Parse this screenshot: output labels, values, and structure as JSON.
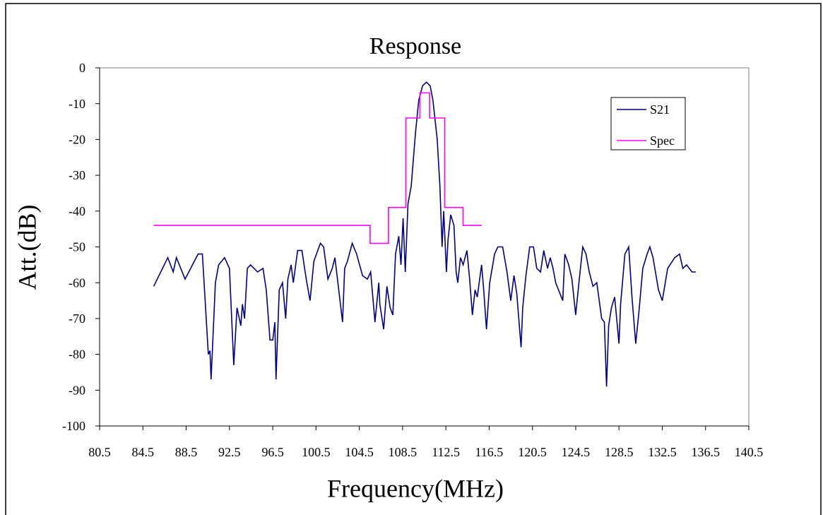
{
  "chart_data": {
    "type": "line",
    "title": "Response",
    "x_label": "Frequency(MHz)",
    "y_label": "Att.(dB)",
    "xlim": [
      80.5,
      140.5
    ],
    "xticks": [
      80.5,
      84.5,
      88.5,
      92.5,
      96.5,
      100.5,
      104.5,
      108.5,
      112.5,
      116.5,
      120.5,
      124.5,
      128.5,
      132.5,
      136.5,
      140.5
    ],
    "ylim": [
      -100,
      0
    ],
    "yticks": [
      0,
      -10,
      -20,
      -30,
      -40,
      -50,
      -60,
      -70,
      -80,
      -90,
      -100
    ],
    "legend": "upper right",
    "series": [
      {
        "name": "S21",
        "color": "#000080",
        "x": [
          85.5,
          86.8,
          87.3,
          87.6,
          88.4,
          89.6,
          90.0,
          90.55,
          90.7,
          90.8,
          91.2,
          91.5,
          92.05,
          92.5,
          92.9,
          93.2,
          93.55,
          93.7,
          93.9,
          94.15,
          94.45,
          95.1,
          95.6,
          95.9,
          96.25,
          96.5,
          96.7,
          96.8,
          97.1,
          97.4,
          97.7,
          97.9,
          98.2,
          98.4,
          98.8,
          99.2,
          99.6,
          99.95,
          100.3,
          100.9,
          101.2,
          101.6,
          102.0,
          102.25,
          102.95,
          103.15,
          103.4,
          103.85,
          104.25,
          104.8,
          105.25,
          105.55,
          105.95,
          106.3,
          106.4,
          106.75,
          107.05,
          107.35,
          107.6,
          107.85,
          108.15,
          108.35,
          108.55,
          108.75,
          109.0,
          109.3,
          109.7,
          110.0,
          110.35,
          110.7,
          111.05,
          111.3,
          111.7,
          111.95,
          112.15,
          112.3,
          112.55,
          112.7,
          112.95,
          113.25,
          113.45,
          113.6,
          113.85,
          114.1,
          114.45,
          114.7,
          114.95,
          115.2,
          115.4,
          115.8,
          116.0,
          116.25,
          116.55,
          117.0,
          117.3,
          117.75,
          118.15,
          118.5,
          118.8,
          119.05,
          119.45,
          119.6,
          119.9,
          120.25,
          120.6,
          120.9,
          121.25,
          121.55,
          121.9,
          122.15,
          122.4,
          122.65,
          123.3,
          123.5,
          123.85,
          124.15,
          124.5,
          124.8,
          125.15,
          125.45,
          125.75,
          126.1,
          126.45,
          126.9,
          127.15,
          127.35,
          127.55,
          127.8,
          128.1,
          128.5,
          128.65,
          129.05,
          129.4,
          129.7,
          130.05,
          130.35,
          130.7,
          131.1,
          131.35,
          131.65,
          132.15,
          132.5,
          133.0,
          133.65,
          134.1,
          134.4,
          134.75,
          135.25,
          135.6
        ],
        "values": [
          -61,
          -53,
          -57,
          -53,
          -59,
          -52,
          -52,
          -80,
          -79,
          -87,
          -60,
          -55,
          -53,
          -56,
          -83,
          -67,
          -72,
          -66,
          -70,
          -56,
          -55,
          -57,
          -56,
          -62,
          -76,
          -76,
          -71,
          -87,
          -62,
          -60,
          -70,
          -59,
          -55,
          -60,
          -51,
          -51,
          -59,
          -65,
          -54,
          -49,
          -50,
          -59,
          -56,
          -53,
          -71,
          -56,
          -54,
          -49,
          -52,
          -58,
          -59,
          -57,
          -71,
          -60,
          -66,
          -73,
          -61,
          -67,
          -69,
          -52,
          -47,
          -55,
          -42,
          -57,
          -38,
          -33,
          -18,
          -9,
          -5,
          -4,
          -5,
          -9,
          -20,
          -33,
          -50,
          -40,
          -57,
          -48,
          -41,
          -44,
          -57,
          -60,
          -53,
          -55,
          -51,
          -59,
          -69,
          -62,
          -64,
          -55,
          -62,
          -73,
          -60,
          -52,
          -50,
          -50,
          -57,
          -65,
          -58,
          -63,
          -78,
          -67,
          -58,
          -50,
          -50,
          -56,
          -57,
          -51,
          -56,
          -53,
          -56,
          -60,
          -65,
          -52,
          -55,
          -59,
          -69,
          -60,
          -50,
          -52,
          -57,
          -61,
          -60,
          -70,
          -71,
          -89,
          -72,
          -67,
          -64,
          -77,
          -66,
          -52,
          -50,
          -64,
          -77,
          -68,
          -56,
          -52,
          -50,
          -53,
          -62,
          -65,
          -56,
          -53,
          -52,
          -56,
          -55,
          -57,
          -57
        ]
      },
      {
        "name": "Spec",
        "color": "#ff00ff",
        "x": [
          85.5,
          105.5,
          105.5,
          107.2,
          107.2,
          108.8,
          108.8,
          110.1,
          110.1,
          111.0,
          111.0,
          112.4,
          112.4,
          114.1,
          114.1,
          115.8
        ],
        "values": [
          -44,
          -44,
          -49,
          -49,
          -39,
          -39,
          -14,
          -14,
          -7,
          -7,
          -14,
          -14,
          -39,
          -39,
          -44,
          -44
        ]
      }
    ]
  }
}
